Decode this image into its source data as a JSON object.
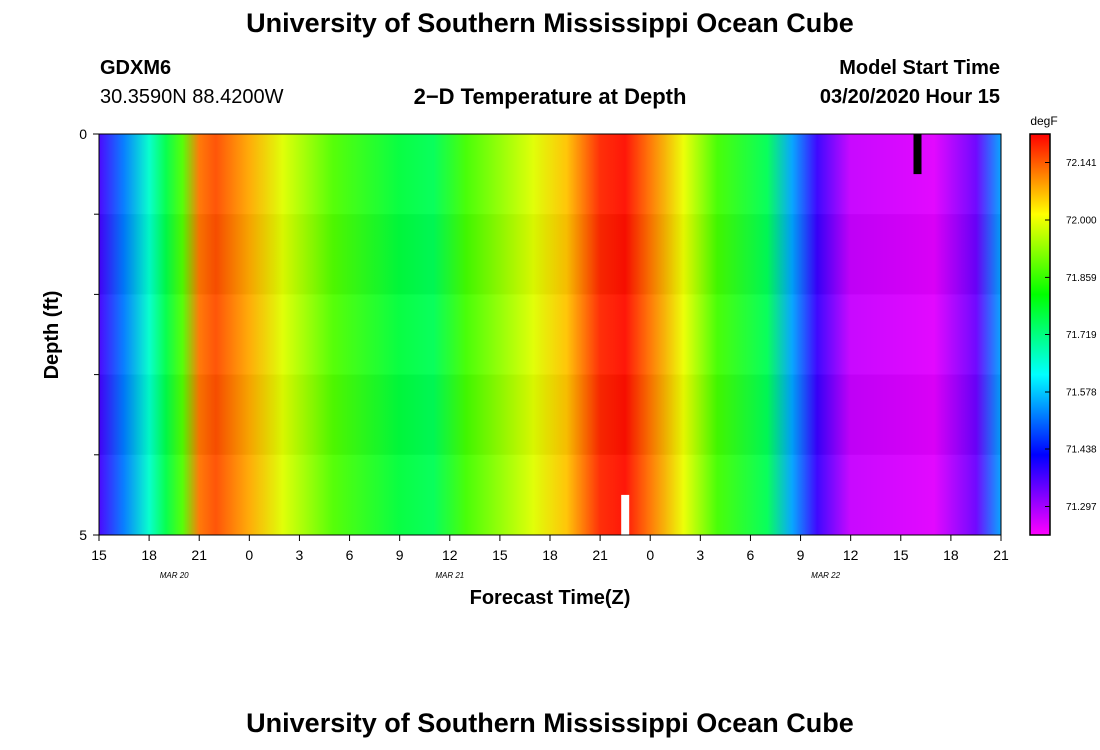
{
  "page": {
    "title_top": "University of Southern Mississippi Ocean Cube",
    "title_bottom": "University of Southern Mississippi Ocean Cube",
    "station_id": "GDXM6",
    "station_coords": "30.3590N 88.4200W",
    "plot_title": "2−D Temperature at Depth",
    "model_label": "Model Start Time",
    "model_time": "03/20/2020 Hour 15"
  },
  "chart_data": {
    "type": "heatmap",
    "title": "2−D Temperature at Depth",
    "xlabel": "Forecast Time(Z)",
    "ylabel": "Depth (ft)",
    "x_hours": [
      0,
      3,
      6,
      9,
      12,
      15,
      18,
      21,
      24,
      27,
      30,
      33,
      36,
      39,
      42,
      45,
      48,
      51,
      54
    ],
    "x_tick_labels": [
      "15",
      "18",
      "21",
      "0",
      "3",
      "6",
      "9",
      "12",
      "15",
      "18",
      "21",
      "0",
      "3",
      "6",
      "9",
      "12",
      "15",
      "18",
      "21"
    ],
    "date_labels": [
      {
        "label": "MAR 20",
        "hour": 4.5
      },
      {
        "label": "MAR 21",
        "hour": 21
      },
      {
        "label": "MAR 22",
        "hour": 43.5
      }
    ],
    "xlim": [
      0,
      54
    ],
    "y_tick_labels": [
      "0",
      "5"
    ],
    "ylim": [
      0,
      5
    ],
    "y_minor_ticks": [
      1,
      2,
      3,
      4
    ],
    "colorbar": {
      "unit": "degF",
      "min": 71.227,
      "max": 72.211,
      "tick_values": [
        72.141,
        72.0,
        71.859,
        71.719,
        71.578,
        71.438,
        71.297
      ],
      "tick_labels": [
        "72.141",
        "72.000",
        "71.859",
        "71.719",
        "71.578",
        "71.438",
        "71.297"
      ]
    },
    "surface_temperature_profile": [
      {
        "hour": 0,
        "value": 71.37
      },
      {
        "hour": 1.5,
        "value": 71.52
      },
      {
        "hour": 3,
        "value": 71.66
      },
      {
        "hour": 4,
        "value": 71.76
      },
      {
        "hour": 5,
        "value": 71.88
      },
      {
        "hour": 6,
        "value": 72.12
      },
      {
        "hour": 7,
        "value": 72.15
      },
      {
        "hour": 9,
        "value": 72.08
      },
      {
        "hour": 11,
        "value": 71.99
      },
      {
        "hour": 14,
        "value": 71.88
      },
      {
        "hour": 18,
        "value": 71.77
      },
      {
        "hour": 20,
        "value": 71.75
      },
      {
        "hour": 22,
        "value": 71.87
      },
      {
        "hour": 26,
        "value": 71.99
      },
      {
        "hour": 28,
        "value": 72.06
      },
      {
        "hour": 30,
        "value": 72.18
      },
      {
        "hour": 31.5,
        "value": 72.2
      },
      {
        "hour": 33,
        "value": 72.12
      },
      {
        "hour": 35,
        "value": 72.0
      },
      {
        "hour": 37,
        "value": 71.87
      },
      {
        "hour": 40,
        "value": 71.75
      },
      {
        "hour": 41.5,
        "value": 71.55
      },
      {
        "hour": 43,
        "value": 71.38
      },
      {
        "hour": 45,
        "value": 71.27
      },
      {
        "hour": 50,
        "value": 71.25
      },
      {
        "hour": 52.5,
        "value": 71.34
      },
      {
        "hour": 54,
        "value": 71.55
      }
    ],
    "depth_profile_note": "Nearly uniform with depth; warm bands broaden slightly toward 5 ft",
    "artifacts": [
      {
        "hour": 49,
        "depth": [
          0,
          0.5
        ],
        "color": "#000000"
      },
      {
        "hour": 31.5,
        "depth": [
          4.5,
          5
        ],
        "color": "#ffffff"
      }
    ]
  }
}
